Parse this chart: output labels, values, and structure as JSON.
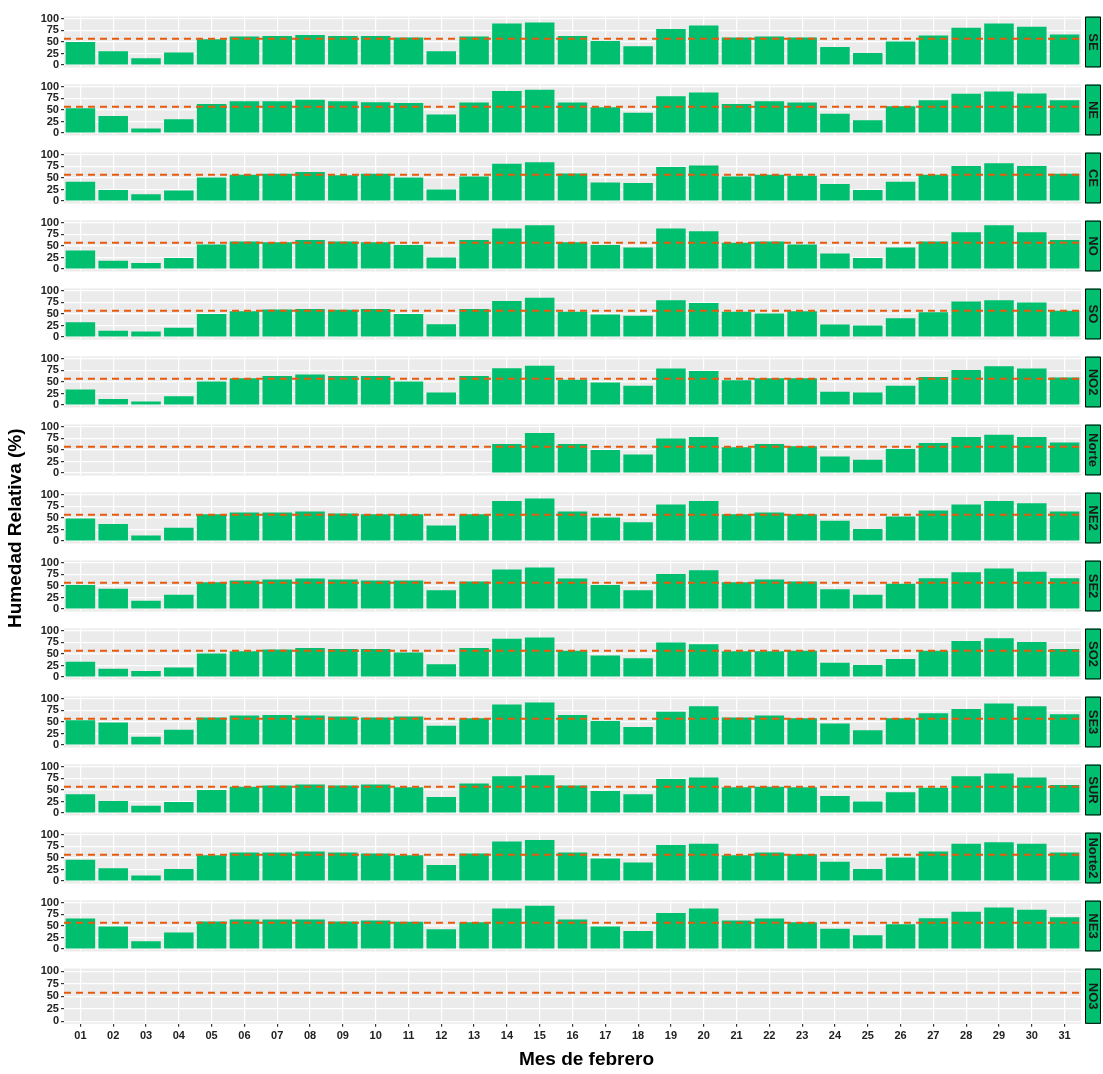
{
  "chart_data": [
    {
      "type": "bar",
      "title": "SE",
      "categories": [
        "01",
        "02",
        "03",
        "04",
        "05",
        "06",
        "07",
        "08",
        "09",
        "10",
        "11",
        "12",
        "13",
        "14",
        "15",
        "16",
        "17",
        "18",
        "19",
        "20",
        "21",
        "22",
        "23",
        "24",
        "25",
        "26",
        "27",
        "28",
        "29",
        "30",
        "31"
      ],
      "color": "#00bf6f",
      "ylim": [
        -5,
        105
      ],
      "yticks": [
        0,
        25,
        50,
        75,
        100
      ],
      "grid": true,
      "legend": false,
      "tick_labels": "y",
      "ref_lines": [
        {
          "axis": "y",
          "value": 57,
          "color": "#e8590c",
          "line_style": "dashed"
        }
      ],
      "values": [
        50,
        30,
        15,
        27,
        56,
        62,
        63,
        65,
        63,
        63,
        60,
        30,
        62,
        90,
        92,
        63,
        52,
        41,
        78,
        86,
        60,
        62,
        60,
        39,
        26,
        51,
        64,
        81,
        90,
        83,
        66
      ]
    },
    {
      "type": "bar",
      "title": "NE",
      "categories": [
        "01",
        "02",
        "03",
        "04",
        "05",
        "06",
        "07",
        "08",
        "09",
        "10",
        "11",
        "12",
        "13",
        "14",
        "15",
        "16",
        "17",
        "18",
        "19",
        "20",
        "21",
        "22",
        "23",
        "24",
        "25",
        "26",
        "27",
        "28",
        "29",
        "30",
        "31"
      ],
      "color": "#00bf6f",
      "ylim": [
        -5,
        105
      ],
      "yticks": [
        0,
        25,
        50,
        75,
        100
      ],
      "grid": true,
      "legend": false,
      "tick_labels": "y",
      "ref_lines": [
        {
          "axis": "y",
          "value": 57,
          "color": "#e8590c",
          "line_style": "dashed"
        }
      ],
      "values": [
        54,
        37,
        10,
        30,
        63,
        69,
        69,
        72,
        69,
        67,
        65,
        40,
        66,
        91,
        94,
        66,
        56,
        44,
        80,
        88,
        63,
        69,
        66,
        42,
        28,
        58,
        71,
        85,
        90,
        86,
        71
      ]
    },
    {
      "type": "bar",
      "title": "CE",
      "categories": [
        "01",
        "02",
        "03",
        "04",
        "05",
        "06",
        "07",
        "08",
        "09",
        "10",
        "11",
        "12",
        "13",
        "14",
        "15",
        "16",
        "17",
        "18",
        "19",
        "20",
        "21",
        "22",
        "23",
        "24",
        "25",
        "26",
        "27",
        "28",
        "29",
        "30",
        "31"
      ],
      "color": "#00bf6f",
      "ylim": [
        -5,
        105
      ],
      "yticks": [
        0,
        25,
        50,
        75,
        100
      ],
      "grid": true,
      "legend": false,
      "tick_labels": "y",
      "ref_lines": [
        {
          "axis": "y",
          "value": 57,
          "color": "#e8590c",
          "line_style": "dashed"
        }
      ],
      "values": [
        42,
        24,
        15,
        23,
        51,
        57,
        59,
        63,
        56,
        59,
        51,
        25,
        53,
        81,
        84,
        60,
        40,
        39,
        74,
        77,
        53,
        57,
        55,
        37,
        24,
        42,
        57,
        76,
        82,
        76,
        59
      ]
    },
    {
      "type": "bar",
      "title": "NO",
      "categories": [
        "01",
        "02",
        "03",
        "04",
        "05",
        "06",
        "07",
        "08",
        "09",
        "10",
        "11",
        "12",
        "13",
        "14",
        "15",
        "16",
        "17",
        "18",
        "19",
        "20",
        "21",
        "22",
        "23",
        "24",
        "25",
        "26",
        "27",
        "28",
        "29",
        "30",
        "31"
      ],
      "color": "#00bf6f",
      "ylim": [
        -5,
        105
      ],
      "yticks": [
        0,
        25,
        50,
        75,
        100
      ],
      "grid": true,
      "legend": false,
      "tick_labels": "y",
      "ref_lines": [
        {
          "axis": "y",
          "value": 57,
          "color": "#e8590c",
          "line_style": "dashed"
        }
      ],
      "values": [
        40,
        18,
        13,
        24,
        53,
        60,
        58,
        63,
        60,
        58,
        52,
        25,
        63,
        88,
        95,
        58,
        52,
        47,
        88,
        82,
        57,
        60,
        53,
        34,
        24,
        47,
        60,
        80,
        95,
        80,
        63
      ]
    },
    {
      "type": "bar",
      "title": "SO",
      "categories": [
        "01",
        "02",
        "03",
        "04",
        "05",
        "06",
        "07",
        "08",
        "09",
        "10",
        "11",
        "12",
        "13",
        "14",
        "15",
        "16",
        "17",
        "18",
        "19",
        "20",
        "21",
        "22",
        "23",
        "24",
        "25",
        "26",
        "27",
        "28",
        "29",
        "30",
        "31"
      ],
      "color": "#00bf6f",
      "ylim": [
        -5,
        105
      ],
      "yticks": [
        0,
        25,
        50,
        75,
        100
      ],
      "grid": true,
      "legend": false,
      "tick_labels": "y",
      "ref_lines": [
        {
          "axis": "y",
          "value": 57,
          "color": "#e8590c",
          "line_style": "dashed"
        }
      ],
      "values": [
        32,
        14,
        12,
        20,
        50,
        56,
        60,
        61,
        59,
        61,
        50,
        28,
        61,
        78,
        85,
        55,
        49,
        46,
        80,
        74,
        55,
        51,
        56,
        27,
        25,
        41,
        54,
        77,
        80,
        75,
        57
      ]
    },
    {
      "type": "bar",
      "title": "NO2",
      "categories": [
        "01",
        "02",
        "03",
        "04",
        "05",
        "06",
        "07",
        "08",
        "09",
        "10",
        "11",
        "12",
        "13",
        "14",
        "15",
        "16",
        "17",
        "18",
        "19",
        "20",
        "21",
        "22",
        "23",
        "24",
        "25",
        "26",
        "27",
        "28",
        "29",
        "30",
        "31"
      ],
      "color": "#00bf6f",
      "ylim": [
        -5,
        105
      ],
      "yticks": [
        0,
        25,
        50,
        75,
        100
      ],
      "grid": true,
      "legend": false,
      "tick_labels": "y",
      "ref_lines": [
        {
          "axis": "y",
          "value": 57,
          "color": "#e8590c",
          "line_style": "dashed"
        }
      ],
      "values": [
        34,
        13,
        8,
        19,
        51,
        58,
        63,
        66,
        63,
        63,
        51,
        27,
        63,
        80,
        85,
        55,
        49,
        42,
        79,
        74,
        54,
        58,
        58,
        29,
        27,
        42,
        61,
        76,
        84,
        79,
        60
      ]
    },
    {
      "type": "bar",
      "title": "Norte",
      "categories": [
        "01",
        "02",
        "03",
        "04",
        "05",
        "06",
        "07",
        "08",
        "09",
        "10",
        "11",
        "12",
        "13",
        "14",
        "15",
        "16",
        "17",
        "18",
        "19",
        "20",
        "21",
        "22",
        "23",
        "24",
        "25",
        "26",
        "27",
        "28",
        "29",
        "30",
        "31"
      ],
      "color": "#00bf6f",
      "ylim": [
        -5,
        105
      ],
      "yticks": [
        0,
        25,
        50,
        75,
        100
      ],
      "grid": true,
      "legend": false,
      "tick_labels": "y",
      "ref_lines": [
        {
          "axis": "y",
          "value": 57,
          "color": "#e8590c",
          "line_style": "dashed"
        }
      ],
      "values": [
        null,
        null,
        null,
        null,
        null,
        null,
        null,
        null,
        null,
        null,
        null,
        null,
        null,
        63,
        87,
        63,
        50,
        40,
        75,
        78,
        56,
        63,
        58,
        36,
        29,
        52,
        65,
        78,
        83,
        78,
        66
      ]
    },
    {
      "type": "bar",
      "title": "NE2",
      "ylabel": "Humedad Relativa (%)",
      "categories": [
        "01",
        "02",
        "03",
        "04",
        "05",
        "06",
        "07",
        "08",
        "09",
        "10",
        "11",
        "12",
        "13",
        "14",
        "15",
        "16",
        "17",
        "18",
        "19",
        "20",
        "21",
        "22",
        "23",
        "24",
        "25",
        "26",
        "27",
        "28",
        "29",
        "30",
        "31"
      ],
      "color": "#00bf6f",
      "ylim": [
        -5,
        105
      ],
      "yticks": [
        0,
        25,
        50,
        75,
        100
      ],
      "grid": true,
      "legend": false,
      "tick_labels": "y",
      "ref_lines": [
        {
          "axis": "y",
          "value": 57,
          "color": "#e8590c",
          "line_style": "dashed"
        }
      ],
      "values": [
        49,
        37,
        12,
        29,
        58,
        62,
        62,
        64,
        60,
        58,
        58,
        34,
        58,
        87,
        92,
        64,
        51,
        41,
        79,
        87,
        58,
        62,
        58,
        44,
        26,
        53,
        66,
        79,
        87,
        82,
        64
      ]
    },
    {
      "type": "bar",
      "title": "SE2",
      "categories": [
        "01",
        "02",
        "03",
        "04",
        "05",
        "06",
        "07",
        "08",
        "09",
        "10",
        "11",
        "12",
        "13",
        "14",
        "15",
        "16",
        "17",
        "18",
        "19",
        "20",
        "21",
        "22",
        "23",
        "24",
        "25",
        "26",
        "27",
        "28",
        "29",
        "30",
        "31"
      ],
      "color": "#00bf6f",
      "ylim": [
        -5,
        105
      ],
      "yticks": [
        0,
        25,
        50,
        75,
        100
      ],
      "grid": true,
      "legend": false,
      "tick_labels": "y",
      "ref_lines": [
        {
          "axis": "y",
          "value": 57,
          "color": "#e8590c",
          "line_style": "dashed"
        }
      ],
      "values": [
        52,
        44,
        18,
        31,
        58,
        62,
        64,
        66,
        64,
        62,
        62,
        41,
        60,
        86,
        90,
        66,
        52,
        41,
        76,
        84,
        58,
        64,
        60,
        43,
        31,
        55,
        67,
        80,
        88,
        81,
        67
      ]
    },
    {
      "type": "bar",
      "title": "SO2",
      "categories": [
        "01",
        "02",
        "03",
        "04",
        "05",
        "06",
        "07",
        "08",
        "09",
        "10",
        "11",
        "12",
        "13",
        "14",
        "15",
        "16",
        "17",
        "18",
        "19",
        "20",
        "21",
        "22",
        "23",
        "24",
        "25",
        "26",
        "27",
        "28",
        "29",
        "30",
        "31"
      ],
      "color": "#00bf6f",
      "ylim": [
        -5,
        105
      ],
      "yticks": [
        0,
        25,
        50,
        75,
        100
      ],
      "grid": true,
      "legend": false,
      "tick_labels": "y",
      "ref_lines": [
        {
          "axis": "y",
          "value": 57,
          "color": "#e8590c",
          "line_style": "dashed"
        }
      ],
      "values": [
        33,
        18,
        13,
        21,
        51,
        56,
        60,
        63,
        61,
        61,
        53,
        28,
        63,
        83,
        86,
        57,
        47,
        41,
        75,
        71,
        56,
        56,
        57,
        31,
        26,
        39,
        57,
        78,
        84,
        76,
        61
      ]
    },
    {
      "type": "bar",
      "title": "SE3",
      "categories": [
        "01",
        "02",
        "03",
        "04",
        "05",
        "06",
        "07",
        "08",
        "09",
        "10",
        "11",
        "12",
        "13",
        "14",
        "15",
        "16",
        "17",
        "18",
        "19",
        "20",
        "21",
        "22",
        "23",
        "24",
        "25",
        "26",
        "27",
        "28",
        "29",
        "30",
        "31"
      ],
      "color": "#00bf6f",
      "ylim": [
        -5,
        105
      ],
      "yticks": [
        0,
        25,
        50,
        75,
        100
      ],
      "grid": true,
      "legend": false,
      "tick_labels": "y",
      "ref_lines": [
        {
          "axis": "y",
          "value": 57,
          "color": "#e8590c",
          "line_style": "dashed"
        }
      ],
      "values": [
        54,
        49,
        18,
        33,
        60,
        64,
        65,
        64,
        62,
        60,
        62,
        42,
        58,
        88,
        92,
        65,
        52,
        39,
        72,
        84,
        60,
        64,
        58,
        47,
        32,
        58,
        69,
        78,
        90,
        84,
        67
      ]
    },
    {
      "type": "bar",
      "title": "SUR",
      "categories": [
        "01",
        "02",
        "03",
        "04",
        "05",
        "06",
        "07",
        "08",
        "09",
        "10",
        "11",
        "12",
        "13",
        "14",
        "15",
        "16",
        "17",
        "18",
        "19",
        "20",
        "21",
        "22",
        "23",
        "24",
        "25",
        "26",
        "27",
        "28",
        "29",
        "30",
        "31"
      ],
      "color": "#00bf6f",
      "ylim": [
        -5,
        105
      ],
      "yticks": [
        0,
        25,
        50,
        75,
        100
      ],
      "grid": true,
      "legend": false,
      "tick_labels": "y",
      "ref_lines": [
        {
          "axis": "y",
          "value": 57,
          "color": "#e8590c",
          "line_style": "dashed"
        }
      ],
      "values": [
        41,
        26,
        16,
        24,
        50,
        57,
        60,
        62,
        60,
        62,
        56,
        35,
        64,
        80,
        82,
        60,
        48,
        41,
        74,
        77,
        56,
        57,
        56,
        37,
        25,
        45,
        55,
        80,
        86,
        77,
        61
      ]
    },
    {
      "type": "bar",
      "title": "Norte2",
      "categories": [
        "01",
        "02",
        "03",
        "04",
        "05",
        "06",
        "07",
        "08",
        "09",
        "10",
        "11",
        "12",
        "13",
        "14",
        "15",
        "16",
        "17",
        "18",
        "19",
        "20",
        "21",
        "22",
        "23",
        "24",
        "25",
        "26",
        "27",
        "28",
        "29",
        "30",
        "31"
      ],
      "color": "#00bf6f",
      "ylim": [
        -5,
        105
      ],
      "yticks": [
        0,
        25,
        50,
        75,
        100
      ],
      "grid": true,
      "legend": false,
      "tick_labels": "y",
      "ref_lines": [
        {
          "axis": "y",
          "value": 57,
          "color": "#e8590c",
          "line_style": "dashed"
        }
      ],
      "values": [
        46,
        28,
        12,
        26,
        56,
        62,
        62,
        64,
        62,
        60,
        56,
        35,
        60,
        86,
        89,
        62,
        49,
        40,
        78,
        81,
        56,
        62,
        58,
        42,
        26,
        51,
        64,
        81,
        84,
        81,
        62
      ]
    },
    {
      "type": "bar",
      "title": "NE3",
      "categories": [
        "01",
        "02",
        "03",
        "04",
        "05",
        "06",
        "07",
        "08",
        "09",
        "10",
        "11",
        "12",
        "13",
        "14",
        "15",
        "16",
        "17",
        "18",
        "19",
        "20",
        "21",
        "22",
        "23",
        "24",
        "25",
        "26",
        "27",
        "28",
        "29",
        "30",
        "31"
      ],
      "color": "#00bf6f",
      "ylim": [
        -5,
        105
      ],
      "yticks": [
        0,
        25,
        50,
        75,
        100
      ],
      "grid": true,
      "legend": false,
      "tick_labels": "y",
      "ref_lines": [
        {
          "axis": "y",
          "value": 57,
          "color": "#e8590c",
          "line_style": "dashed"
        }
      ],
      "values": [
        66,
        49,
        17,
        36,
        60,
        64,
        64,
        64,
        60,
        62,
        59,
        43,
        58,
        88,
        94,
        64,
        49,
        39,
        78,
        88,
        62,
        66,
        58,
        44,
        30,
        54,
        67,
        81,
        90,
        85,
        69
      ]
    },
    {
      "type": "bar",
      "title": "NO3",
      "xlabel": "Mes de febrero",
      "categories": [
        "01",
        "02",
        "03",
        "04",
        "05",
        "06",
        "07",
        "08",
        "09",
        "10",
        "11",
        "12",
        "13",
        "14",
        "15",
        "16",
        "17",
        "18",
        "19",
        "20",
        "21",
        "22",
        "23",
        "24",
        "25",
        "26",
        "27",
        "28",
        "29",
        "30",
        "31"
      ],
      "color": "#00bf6f",
      "ylim": [
        -5,
        105
      ],
      "yticks": [
        0,
        25,
        50,
        75,
        100
      ],
      "grid": true,
      "legend": false,
      "ref_lines": [
        {
          "axis": "y",
          "value": 57,
          "color": "#e8590c",
          "line_style": "dashed"
        }
      ],
      "values": [
        null,
        null,
        null,
        null,
        null,
        null,
        null,
        null,
        null,
        null,
        null,
        null,
        null,
        null,
        null,
        null,
        null,
        null,
        null,
        null,
        null,
        null,
        null,
        null,
        null,
        null,
        null,
        null,
        null,
        null,
        null
      ]
    }
  ]
}
